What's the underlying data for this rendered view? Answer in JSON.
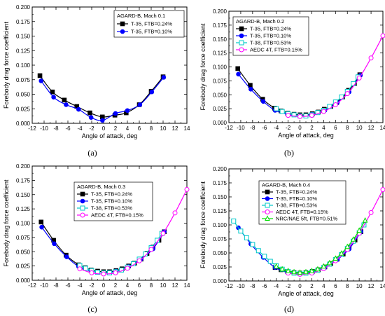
{
  "panel_labels": [
    "(a)",
    "(b)",
    "(c)",
    "(d)"
  ],
  "chart_data": [
    {
      "type": "line",
      "title": "AGARD-B, Mach 0.1",
      "xlabel": "Angle of attack, deg",
      "ylabel": "Forebody drag force coefficient",
      "xlim": [
        -12,
        14
      ],
      "ylim": [
        0,
        0.2
      ],
      "xticks": [
        "-12",
        "-10",
        "-8",
        "-6",
        "-4",
        "-2",
        "0",
        "2",
        "4",
        "6",
        "8",
        "10",
        "12",
        "14"
      ],
      "yticks": [
        "0.000",
        "0.025",
        "0.050",
        "0.075",
        "0.100",
        "0.125",
        "0.150",
        "0.175",
        "0.200"
      ],
      "legend_position": "top-right",
      "series": [
        {
          "name": "T-35, FTB=0.24%",
          "color": "#000000",
          "marker": "square-filled",
          "x": [
            -10.7,
            -8.6,
            -6.6,
            -4.5,
            -2.3,
            -0.2,
            1.9,
            3.8,
            6.0,
            8.0,
            10.0
          ],
          "y": [
            0.082,
            0.054,
            0.04,
            0.029,
            0.018,
            0.011,
            0.014,
            0.018,
            0.032,
            0.055,
            0.08
          ]
        },
        {
          "name": "T-35, FTB=0.10%",
          "color": "#0000ff",
          "marker": "circle-filled",
          "x": [
            -10.5,
            -8.4,
            -6.3,
            -4.2,
            -2.1,
            -0.2,
            2.0,
            4.0,
            6.1,
            8.1,
            10.1
          ],
          "y": [
            0.073,
            0.045,
            0.032,
            0.024,
            0.01,
            0.005,
            0.017,
            0.022,
            0.032,
            0.054,
            0.079
          ]
        }
      ]
    },
    {
      "type": "line",
      "title": "AGARD-B, Mach 0.2",
      "xlabel": "Angle of attack, deg",
      "ylabel": "Forebody drag force coefficient",
      "xlim": [
        -12,
        14
      ],
      "ylim": [
        0,
        0.2
      ],
      "xticks": [
        "-12",
        "-10",
        "-8",
        "-6",
        "-4",
        "-2",
        "0",
        "2",
        "4",
        "6",
        "8",
        "10",
        "12",
        "14"
      ],
      "yticks": [
        "0.000",
        "0.025",
        "0.050",
        "0.075",
        "0.100",
        "0.125",
        "0.150",
        "0.175",
        "0.200"
      ],
      "legend_position": "top-left",
      "series": [
        {
          "name": "T-35, FTB=0.24%",
          "color": "#000000",
          "marker": "square-filled",
          "x": [
            -10.5,
            -8.4,
            -6.3,
            -4.3,
            -3.2,
            -2.1,
            -1.0,
            0.0,
            1.0,
            2.1,
            3.1,
            4.1,
            5.2,
            6.2,
            7.2,
            8.2,
            9.2,
            10.1
          ],
          "y": [
            0.097,
            0.067,
            0.042,
            0.026,
            0.021,
            0.017,
            0.015,
            0.014,
            0.014,
            0.016,
            0.019,
            0.024,
            0.029,
            0.036,
            0.046,
            0.058,
            0.07,
            0.086
          ]
        },
        {
          "name": "T-35, FTB=0.10%",
          "color": "#0000ff",
          "marker": "circle-filled",
          "x": [
            -10.4,
            -8.3,
            -6.2,
            -4.2,
            -2.1,
            0.0,
            2.1,
            4.2,
            6.3,
            8.3,
            10.2
          ],
          "y": [
            0.087,
            0.06,
            0.038,
            0.022,
            0.015,
            0.012,
            0.015,
            0.022,
            0.036,
            0.055,
            0.085
          ]
        },
        {
          "name": "T-38, FTB=0.53%",
          "color": "#00c8c8",
          "marker": "square-open",
          "x": [
            -4.0,
            -3.0,
            -2.0,
            -1.0,
            0.0,
            1.0,
            2.0,
            3.0,
            4.0,
            5.0,
            6.0,
            7.0,
            8.0,
            9.0,
            9.8
          ],
          "y": [
            0.025,
            0.02,
            0.016,
            0.014,
            0.012,
            0.012,
            0.014,
            0.018,
            0.022,
            0.029,
            0.037,
            0.046,
            0.056,
            0.07,
            0.082
          ]
        },
        {
          "name": "AEDC 4T, FTB=0.15%",
          "color": "#ff00ff",
          "marker": "circle-open",
          "x": [
            -2.0,
            0.0,
            2.0,
            4.0,
            6.0,
            8.0,
            10.0,
            12.0,
            14.0
          ],
          "y": [
            0.013,
            0.011,
            0.013,
            0.02,
            0.032,
            0.052,
            0.08,
            0.116,
            0.156
          ]
        }
      ]
    },
    {
      "type": "line",
      "title": "AGARD-B, Mach 0.3",
      "xlabel": "Angle of attack, deg",
      "ylabel": "Forebody drag force coefficient",
      "xlim": [
        -12,
        14
      ],
      "ylim": [
        0,
        0.2
      ],
      "xticks": [
        "-12",
        "-10",
        "-8",
        "-6",
        "-4",
        "-2",
        "0",
        "2",
        "4",
        "6",
        "8",
        "10",
        "12",
        "14"
      ],
      "yticks": [
        "0.000",
        "0.025",
        "0.050",
        "0.075",
        "0.100",
        "0.125",
        "0.150",
        "0.175",
        "0.200"
      ],
      "legend_position": "top-left",
      "series": [
        {
          "name": "T-35, FTB=0.24%",
          "color": "#000000",
          "marker": "square-filled",
          "x": [
            -10.5,
            -8.4,
            -6.3,
            -4.2,
            -3.1,
            -2.1,
            -1.0,
            0.0,
            1.0,
            2.1,
            3.1,
            4.2,
            5.2,
            6.3,
            7.3,
            8.3,
            9.3,
            10.2
          ],
          "y": [
            0.102,
            0.07,
            0.044,
            0.027,
            0.022,
            0.018,
            0.016,
            0.015,
            0.015,
            0.017,
            0.02,
            0.025,
            0.03,
            0.037,
            0.047,
            0.058,
            0.07,
            0.085
          ]
        },
        {
          "name": "T-35, FTB=0.10%",
          "color": "#0000ff",
          "marker": "circle-filled",
          "x": [
            -10.4,
            -8.3,
            -6.2,
            -4.2,
            -2.1,
            0.0,
            2.1,
            4.2,
            6.3,
            8.3,
            10.2
          ],
          "y": [
            0.093,
            0.064,
            0.041,
            0.024,
            0.016,
            0.013,
            0.016,
            0.024,
            0.037,
            0.055,
            0.085
          ]
        },
        {
          "name": "T-38, FTB=0.53%",
          "color": "#00c8c8",
          "marker": "square-open",
          "x": [
            -4.0,
            -3.0,
            -2.0,
            -1.0,
            0.0,
            1.0,
            2.0,
            3.0,
            4.0,
            5.0,
            6.0,
            7.0,
            8.0,
            9.0,
            9.8
          ],
          "y": [
            0.026,
            0.021,
            0.017,
            0.014,
            0.013,
            0.013,
            0.015,
            0.018,
            0.023,
            0.029,
            0.037,
            0.046,
            0.057,
            0.07,
            0.082
          ]
        },
        {
          "name": "AEDC 4T, FTB=0.15%",
          "color": "#ff00ff",
          "marker": "circle-open",
          "x": [
            -4.0,
            -2.0,
            0.0,
            2.0,
            4.0,
            6.0,
            8.0,
            10.0,
            12.0,
            14.0
          ],
          "y": [
            0.02,
            0.013,
            0.011,
            0.013,
            0.021,
            0.034,
            0.054,
            0.082,
            0.118,
            0.159
          ]
        }
      ]
    },
    {
      "type": "line",
      "title": "AGARD-B, Mach 0.4",
      "xlabel": "Angle of attack, deg",
      "ylabel": "Forebody drag force coefficient",
      "xlim": [
        -12,
        14
      ],
      "ylim": [
        0,
        0.2
      ],
      "xticks": [
        "-12",
        "-10",
        "-8",
        "-6",
        "-4",
        "-2",
        "0",
        "2",
        "4",
        "6",
        "8",
        "10",
        "12",
        "14"
      ],
      "yticks": [
        "0.000",
        "0.025",
        "0.050",
        "0.075",
        "0.100",
        "0.125",
        "0.150",
        "0.175",
        "0.200"
      ],
      "legend_position": "top-left",
      "series": [
        {
          "name": "T-35, FTB=0.24%",
          "color": "#000000",
          "marker": "square-filled",
          "x": [
            -4.2,
            -3.2,
            -2.1,
            -1.0,
            0.0,
            1.0,
            2.1,
            3.1,
            4.2,
            5.2,
            6.3,
            7.3,
            8.3,
            9.3,
            10.3
          ],
          "y": [
            0.024,
            0.02,
            0.017,
            0.015,
            0.014,
            0.015,
            0.017,
            0.02,
            0.025,
            0.031,
            0.039,
            0.048,
            0.06,
            0.073,
            0.088
          ]
        },
        {
          "name": "T-35, FTB=0.10%",
          "color": "#0000ff",
          "marker": "circle-filled",
          "x": [
            -10.4,
            -8.3,
            -6.2,
            -4.2,
            -2.1,
            0.0,
            2.1,
            4.2,
            6.3,
            8.3,
            10.3
          ],
          "y": [
            0.095,
            0.066,
            0.042,
            0.024,
            0.015,
            0.012,
            0.015,
            0.024,
            0.038,
            0.057,
            0.088
          ]
        },
        {
          "name": "T-38, FTB=0.53%",
          "color": "#00c8c8",
          "marker": "square-open",
          "x": [
            -11.2,
            -10.0,
            -9.0,
            -8.0,
            -7.0,
            -6.0,
            -5.0,
            -4.0,
            -3.0,
            -2.0,
            -1.0,
            0.0,
            1.0,
            2.0,
            3.0,
            4.0,
            5.0,
            6.0,
            7.0,
            8.0,
            9.0,
            10.0,
            10.8
          ],
          "y": [
            0.107,
            0.089,
            0.077,
            0.065,
            0.054,
            0.044,
            0.035,
            0.027,
            0.021,
            0.017,
            0.014,
            0.013,
            0.014,
            0.016,
            0.019,
            0.024,
            0.03,
            0.038,
            0.047,
            0.058,
            0.071,
            0.086,
            0.1
          ]
        },
        {
          "name": "AEDC 4T, FTB=0.15%",
          "color": "#ff00ff",
          "marker": "circle-open",
          "x": [
            -2.0,
            0.0,
            2.0,
            4.0,
            6.0,
            8.0,
            10.0,
            12.0,
            14.0
          ],
          "y": [
            0.014,
            0.012,
            0.014,
            0.022,
            0.036,
            0.056,
            0.085,
            0.122,
            0.163
          ]
        },
        {
          "name": "NRC/NAE 5ft, FTB=0.51%",
          "color": "#00dd00",
          "marker": "triangle-open",
          "x": [
            -4.0,
            -3.0,
            -2.0,
            -1.0,
            0.0,
            1.0,
            2.0,
            3.0,
            4.0,
            5.0,
            6.0,
            7.0,
            8.0,
            9.0,
            10.0,
            11.0
          ],
          "y": [
            0.026,
            0.021,
            0.018,
            0.016,
            0.015,
            0.016,
            0.018,
            0.021,
            0.026,
            0.032,
            0.04,
            0.049,
            0.061,
            0.074,
            0.09,
            0.108
          ]
        }
      ]
    }
  ]
}
